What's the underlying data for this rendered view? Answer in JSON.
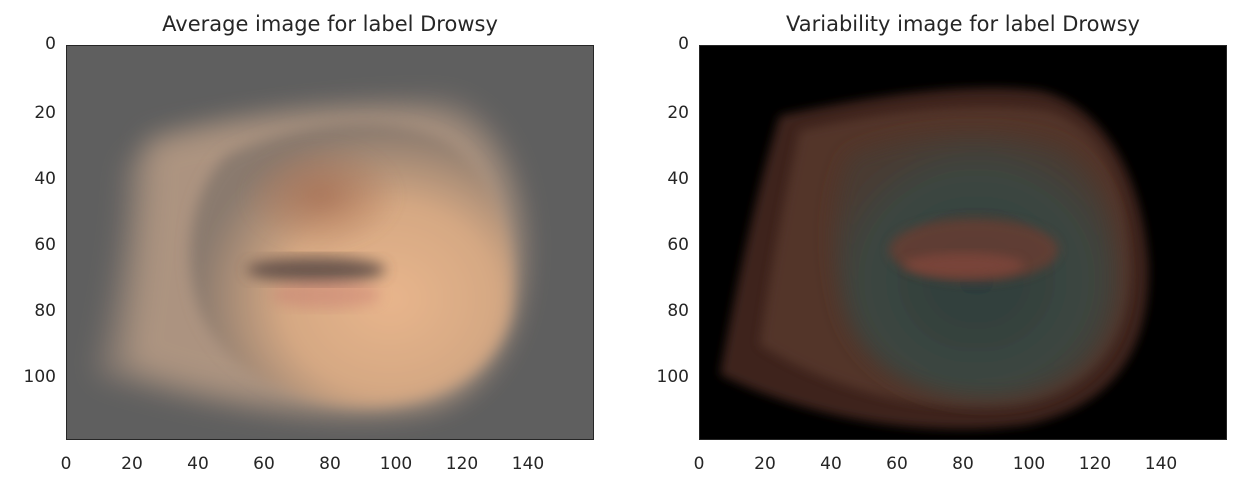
{
  "panels": [
    {
      "title": "Average image for label Drowsy",
      "background": "#5f5f5f",
      "yticks": [
        "0",
        "20",
        "40",
        "60",
        "80",
        "100"
      ],
      "xticks": [
        "0",
        "20",
        "40",
        "60",
        "80",
        "100",
        "120",
        "140"
      ]
    },
    {
      "title": "Variability image for label Drowsy",
      "background": "#000000",
      "yticks": [
        "0",
        "20",
        "40",
        "60",
        "80",
        "100"
      ],
      "xticks": [
        "0",
        "20",
        "40",
        "60",
        "80",
        "100",
        "120",
        "140"
      ]
    }
  ]
}
